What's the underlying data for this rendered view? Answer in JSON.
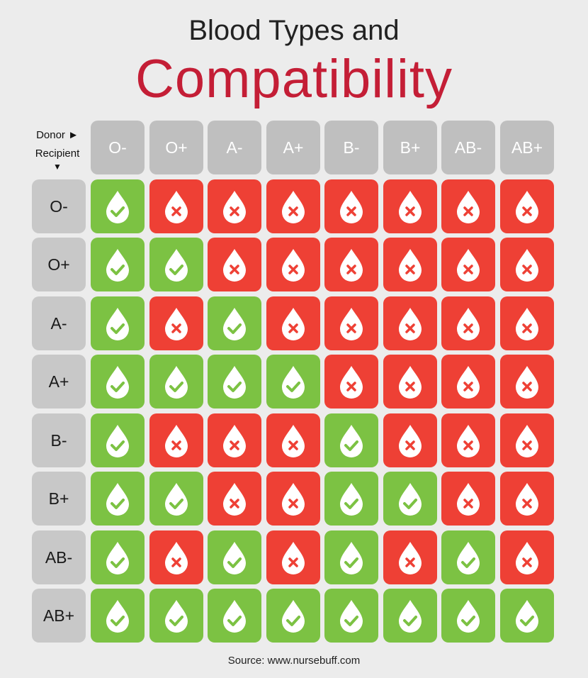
{
  "title": {
    "line1": "Blood Types and",
    "line2": "Compatibility"
  },
  "axis": {
    "donor_label": "Donor ►",
    "recipient_label": "Recipient",
    "recipient_arrow": "▼"
  },
  "donors": [
    "O-",
    "O+",
    "A-",
    "A+",
    "B-",
    "B+",
    "AB-",
    "AB+"
  ],
  "recipients": [
    "O-",
    "O+",
    "A-",
    "A+",
    "B-",
    "B+",
    "AB-",
    "AB+"
  ],
  "compatibility": [
    [
      1,
      0,
      0,
      0,
      0,
      0,
      0,
      0
    ],
    [
      1,
      1,
      0,
      0,
      0,
      0,
      0,
      0
    ],
    [
      1,
      0,
      1,
      0,
      0,
      0,
      0,
      0
    ],
    [
      1,
      1,
      1,
      1,
      0,
      0,
      0,
      0
    ],
    [
      1,
      0,
      0,
      0,
      1,
      0,
      0,
      0
    ],
    [
      1,
      1,
      0,
      0,
      1,
      1,
      0,
      0
    ],
    [
      1,
      0,
      1,
      0,
      1,
      0,
      1,
      0
    ],
    [
      1,
      1,
      1,
      1,
      1,
      1,
      1,
      1
    ]
  ],
  "colors": {
    "compatible": "#7cc243",
    "incompatible": "#ee4035",
    "header": "#bfbfbf",
    "title_accent": "#c41e36"
  },
  "icons": {
    "compatible": "drop-check-icon",
    "incompatible": "drop-cross-icon"
  },
  "source": "Source: www.nursebuff.com"
}
